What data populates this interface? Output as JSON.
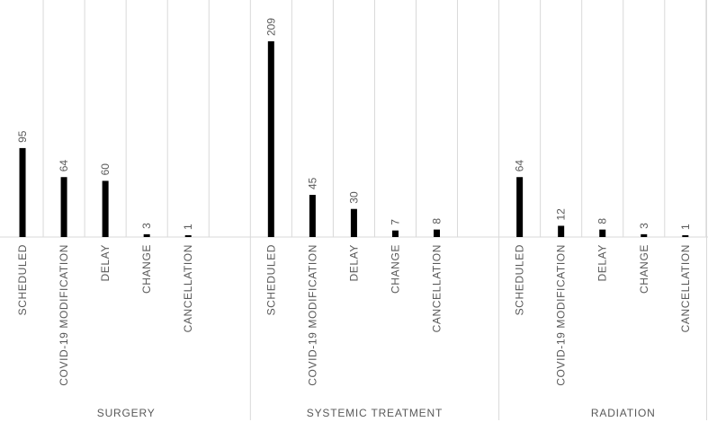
{
  "chart_data": {
    "type": "bar",
    "title": "",
    "xlabel": "",
    "ylabel": "",
    "ylim": [
      0,
      220
    ],
    "grid": true,
    "legend": "none",
    "bar_color": "#000000",
    "groups": [
      {
        "name": "SURGERY",
        "categories": [
          "SCHEDULED",
          "COVID-19 MODIFICATION",
          "DELAY",
          "CHANGE",
          "CANCELLATION"
        ],
        "values": [
          95,
          64,
          60,
          3,
          1
        ]
      },
      {
        "name": "SYSTEMIC TREATMENT",
        "categories": [
          "SCHEDULED",
          "COVID-19 MODIFICATION",
          "DELAY",
          "CHANGE",
          "CANCELLATION"
        ],
        "values": [
          209,
          45,
          30,
          7,
          8
        ]
      },
      {
        "name": "RADIATION",
        "categories": [
          "SCHEDULED",
          "COVID-19 MODIFICATION",
          "DELAY",
          "CHANGE",
          "CANCELLATION"
        ],
        "values": [
          64,
          12,
          8,
          3,
          1
        ]
      }
    ]
  }
}
